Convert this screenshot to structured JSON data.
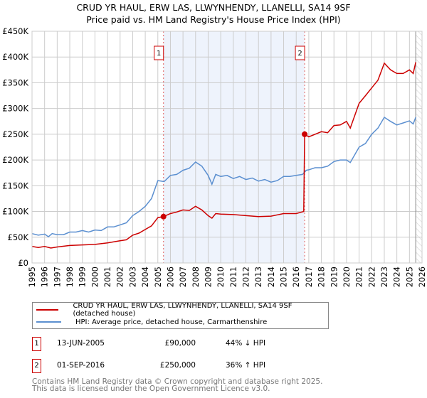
{
  "title_line1": "CRUD YR HAUL, ERW LAS, LLWYNHENDY, LLANELLI, SA14 9SF",
  "title_line2": "Price paid vs. HM Land Registry's House Price Index (HPI)",
  "colors": {
    "property": "#cc0000",
    "hpi": "#5b8fd0",
    "shade": "#eef3fc"
  },
  "chart_data": {
    "type": "line",
    "title": "Price paid vs. HM Land Registry's House Price Index (HPI)",
    "xlim": [
      1995,
      2026
    ],
    "ylim": [
      0,
      450000
    ],
    "xticks": [
      "1995",
      "1996",
      "1997",
      "1998",
      "1999",
      "2000",
      "2001",
      "2002",
      "2003",
      "2004",
      "2005",
      "2006",
      "2007",
      "2008",
      "2009",
      "2010",
      "2011",
      "2012",
      "2013",
      "2014",
      "2015",
      "2016",
      "2017",
      "2018",
      "2019",
      "2020",
      "2021",
      "2022",
      "2023",
      "2024",
      "2025",
      "2026"
    ],
    "yticks": [
      {
        "v": 0,
        "label": "£0"
      },
      {
        "v": 50000,
        "label": "£50K"
      },
      {
        "v": 100000,
        "label": "£100K"
      },
      {
        "v": 150000,
        "label": "£150K"
      },
      {
        "v": 200000,
        "label": "£200K"
      },
      {
        "v": 250000,
        "label": "£250K"
      },
      {
        "v": 300000,
        "label": "£300K"
      },
      {
        "v": 350000,
        "label": "£350K"
      },
      {
        "v": 400000,
        "label": "£400K"
      },
      {
        "v": 450000,
        "label": "£450K"
      }
    ],
    "grid": true,
    "shaded_range": [
      2005.45,
      2016.67
    ],
    "forecast_from": 2025.5,
    "series": [
      {
        "name": "CRUD YR HAUL, ERW LAS, LLWYNHENDY, LLANELLI, SA14 9SF (detached house)",
        "color": "#cc0000",
        "x": [
          1995,
          1995.5,
          1996,
          1996.5,
          1997,
          1998,
          1999,
          2000,
          2001,
          2002,
          2002.5,
          2003,
          2003.5,
          2004,
          2004.5,
          2005,
          2005.45,
          2006,
          2006.5,
          2007,
          2007.5,
          2008,
          2008.5,
          2009,
          2009.3,
          2009.6,
          2010,
          2011,
          2012,
          2013,
          2014,
          2015,
          2016,
          2016.6,
          2016.67,
          2017,
          2017.5,
          2018,
          2018.5,
          2019,
          2019.5,
          2020,
          2020.3,
          2021,
          2021.5,
          2022,
          2022.5,
          2023,
          2023.5,
          2024,
          2024.5,
          2025,
          2025.3,
          2025.5
        ],
        "y": [
          32000,
          30000,
          32000,
          29000,
          31000,
          34000,
          35000,
          36000,
          39000,
          43000,
          45000,
          54000,
          58000,
          65000,
          72000,
          88000,
          90000,
          96000,
          99000,
          103000,
          102000,
          110000,
          103000,
          92000,
          87000,
          96000,
          95000,
          94000,
          92000,
          90000,
          91000,
          96000,
          96000,
          100000,
          250000,
          245000,
          250000,
          255000,
          253000,
          267000,
          268000,
          275000,
          262000,
          310000,
          325000,
          340000,
          355000,
          388000,
          375000,
          368000,
          368000,
          375000,
          368000,
          390000
        ]
      },
      {
        "name": "HPI: Average price, detached house, Carmarthenshire",
        "color": "#5b8fd0",
        "x": [
          1995,
          1995.5,
          1996,
          1996.3,
          1996.6,
          1997,
          1997.5,
          1998,
          1998.5,
          1999,
          1999.5,
          2000,
          2000.5,
          2001,
          2001.5,
          2002,
          2002.5,
          2003,
          2003.5,
          2004,
          2004.5,
          2005,
          2005.5,
          2006,
          2006.5,
          2007,
          2007.5,
          2008,
          2008.5,
          2009,
          2009.3,
          2009.6,
          2010,
          2010.5,
          2011,
          2011.5,
          2012,
          2012.5,
          2013,
          2013.5,
          2014,
          2014.5,
          2015,
          2015.5,
          2016,
          2016.5,
          2016.8,
          2017,
          2017.5,
          2018,
          2018.5,
          2019,
          2019.5,
          2020,
          2020.3,
          2021,
          2021.5,
          2022,
          2022.5,
          2023,
          2023.5,
          2024,
          2024.5,
          2025,
          2025.3,
          2025.5
        ],
        "y": [
          57000,
          54000,
          56000,
          51000,
          57000,
          55000,
          55000,
          60000,
          60000,
          63000,
          60000,
          64000,
          63000,
          70000,
          70000,
          74000,
          78000,
          92000,
          100000,
          110000,
          125000,
          160000,
          158000,
          170000,
          172000,
          180000,
          184000,
          196000,
          188000,
          170000,
          153000,
          172000,
          168000,
          170000,
          164000,
          168000,
          162000,
          165000,
          159000,
          162000,
          157000,
          160000,
          168000,
          168000,
          170000,
          172000,
          180000,
          181000,
          185000,
          185000,
          188000,
          197000,
          200000,
          200000,
          195000,
          225000,
          232000,
          250000,
          262000,
          283000,
          275000,
          268000,
          272000,
          276000,
          270000,
          283000
        ]
      }
    ],
    "sales": [
      {
        "label": "1",
        "x": 2005.45,
        "y": 90000
      },
      {
        "label": "2",
        "x": 2016.67,
        "y": 250000
      }
    ]
  },
  "legend": [
    {
      "label": "CRUD YR HAUL, ERW LAS, LLWYNHENDY, LLANELLI, SA14 9SF (detached house)"
    },
    {
      "label": "HPI: Average price, detached house, Carmarthenshire"
    }
  ],
  "transactions": [
    {
      "num": "1",
      "date": "13-JUN-2005",
      "price": "£90,000",
      "hpi": "44% ↓ HPI"
    },
    {
      "num": "2",
      "date": "01-SEP-2016",
      "price": "£250,000",
      "hpi": "36% ↑ HPI"
    }
  ],
  "footer_line1": "Contains HM Land Registry data © Crown copyright and database right 2025.",
  "footer_line2": "This data is licensed under the Open Government Licence v3.0."
}
